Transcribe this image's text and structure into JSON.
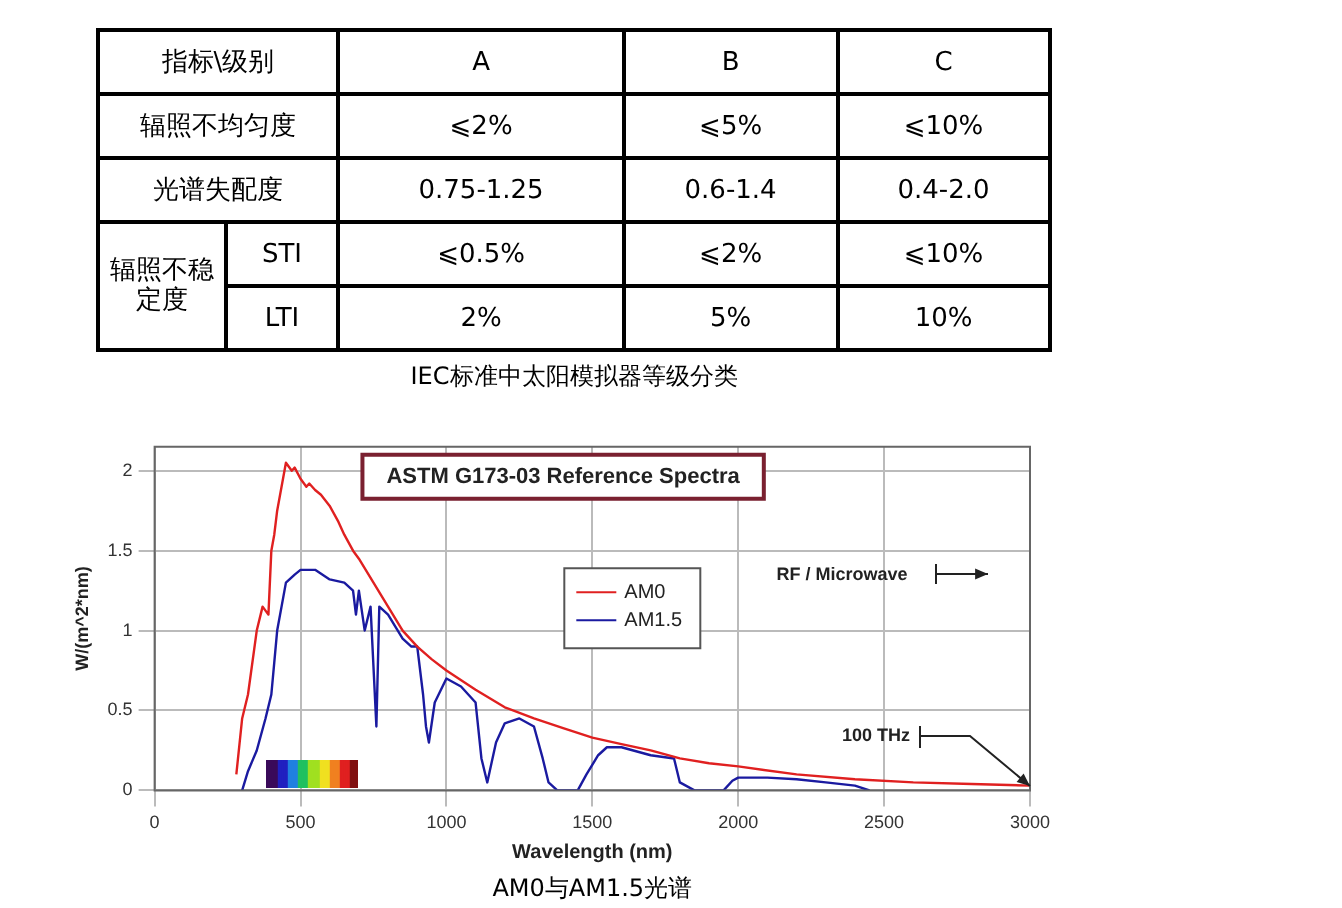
{
  "chart_data": [
    {
      "type": "other",
      "title": "IEC标准中太阳模拟器等级分类",
      "annotations": [
        "指标\\级别",
        "A",
        "B",
        "C",
        "辐照不均匀度",
        "⩽2%",
        "⩽5%",
        "⩽10%",
        "光谱失配度",
        "0.75-1.25",
        "0.6-1.4",
        "0.4-2.0",
        "辐照不稳定度",
        "STI",
        "⩽0.5%",
        "⩽2%",
        "⩽10%",
        "LTI",
        "2%",
        "5%",
        "10%"
      ]
    },
    {
      "type": "line",
      "title": "ASTM G173-03 Reference Spectra",
      "xlabel": "Wavelength (nm)",
      "ylabel": "W/(m^2*nm)",
      "xlim": [
        0,
        3000
      ],
      "xticks": [
        0,
        500,
        1000,
        1500,
        2000,
        2500,
        3000
      ],
      "ylim": [
        0,
        2.15
      ],
      "yticks": [
        0,
        0.5,
        1,
        1.5,
        2
      ],
      "grid": true,
      "legend": "center",
      "annotations": [
        "RF / Microwave",
        {
          "text": "100 THz",
          "x": 3000,
          "y": 0
        },
        "AM0与AM1.5光谱"
      ],
      "series": [
        {
          "name": "AM0",
          "color": "#e02020",
          "x": [
            280,
            300,
            320,
            350,
            370,
            390,
            400,
            410,
            420,
            440,
            450,
            470,
            480,
            500,
            520,
            530,
            550,
            570,
            600,
            630,
            650,
            680,
            700,
            750,
            800,
            850,
            900,
            950,
            1000,
            1100,
            1200,
            1300,
            1400,
            1500,
            1600,
            1700,
            1800,
            1900,
            2000,
            2200,
            2400,
            2600,
            2800,
            3000
          ],
          "values": [
            0.1,
            0.45,
            0.6,
            1.0,
            1.15,
            1.1,
            1.5,
            1.6,
            1.75,
            1.95,
            2.05,
            2.0,
            2.02,
            1.95,
            1.9,
            1.92,
            1.88,
            1.85,
            1.78,
            1.68,
            1.6,
            1.5,
            1.45,
            1.3,
            1.15,
            1.0,
            0.9,
            0.82,
            0.75,
            0.63,
            0.52,
            0.45,
            0.39,
            0.33,
            0.29,
            0.25,
            0.2,
            0.17,
            0.15,
            0.1,
            0.07,
            0.05,
            0.04,
            0.03
          ]
        },
        {
          "name": "AM1.5",
          "color": "#1a1aa0",
          "x": [
            300,
            320,
            350,
            380,
            400,
            410,
            420,
            440,
            450,
            480,
            500,
            550,
            600,
            650,
            680,
            690,
            700,
            720,
            740,
            760,
            770,
            800,
            850,
            880,
            900,
            920,
            930,
            940,
            960,
            1000,
            1050,
            1100,
            1120,
            1140,
            1170,
            1200,
            1250,
            1300,
            1330,
            1350,
            1380,
            1450,
            1480,
            1520,
            1550,
            1600,
            1700,
            1780,
            1800,
            1850,
            1950,
            1980,
            2000,
            2050,
            2100,
            2200,
            2300,
            2400,
            2450
          ],
          "values": [
            0,
            0.12,
            0.25,
            0.45,
            0.6,
            0.8,
            1.0,
            1.2,
            1.3,
            1.35,
            1.38,
            1.38,
            1.32,
            1.3,
            1.25,
            1.1,
            1.25,
            1.0,
            1.15,
            0.4,
            1.15,
            1.1,
            0.95,
            0.9,
            0.9,
            0.6,
            0.4,
            0.3,
            0.55,
            0.7,
            0.65,
            0.55,
            0.2,
            0.05,
            0.3,
            0.42,
            0.45,
            0.4,
            0.2,
            0.05,
            0,
            0,
            0.1,
            0.22,
            0.27,
            0.27,
            0.22,
            0.2,
            0.05,
            0,
            0,
            0.06,
            0.08,
            0.08,
            0.08,
            0.07,
            0.05,
            0.03,
            0
          ]
        }
      ]
    }
  ]
}
